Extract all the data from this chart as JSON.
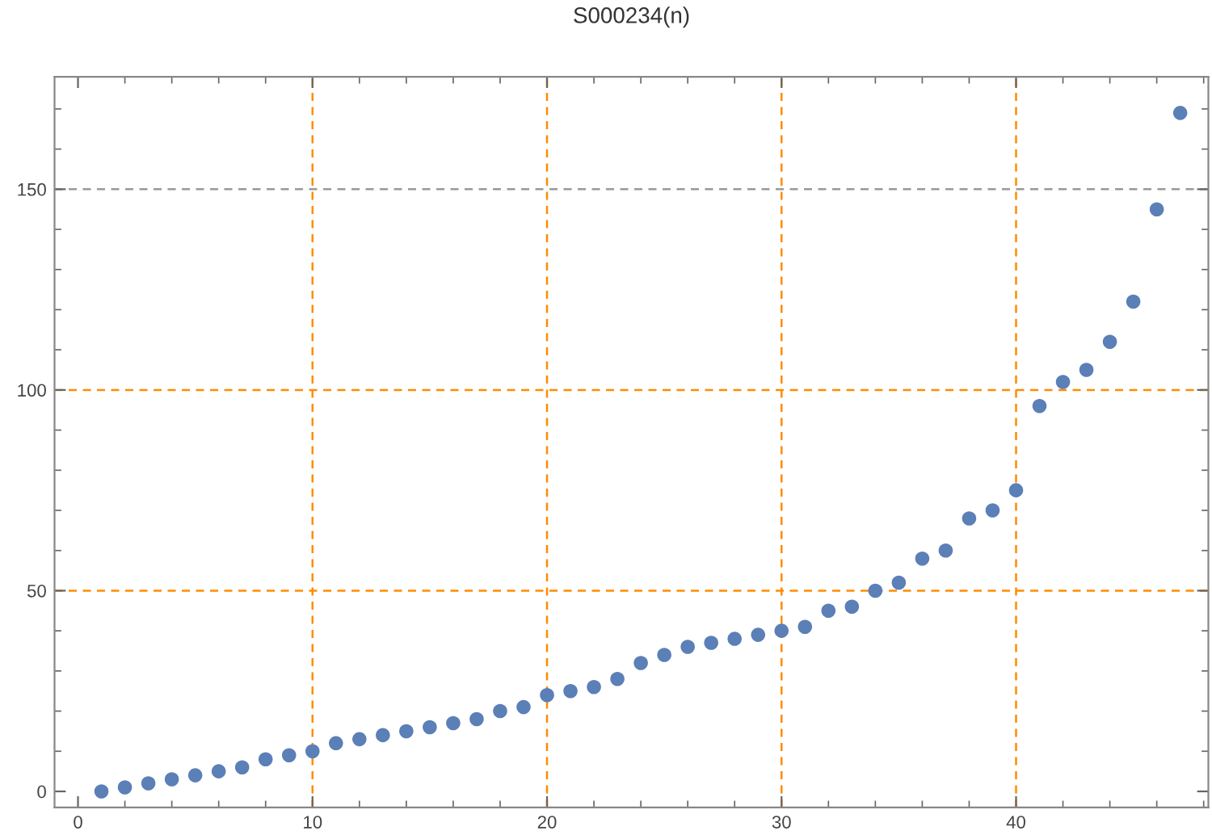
{
  "chart_data": {
    "type": "scatter",
    "title": "S000234(n)",
    "x": [
      1,
      2,
      3,
      4,
      5,
      6,
      7,
      8,
      9,
      10,
      11,
      12,
      13,
      14,
      15,
      16,
      17,
      18,
      19,
      20,
      21,
      22,
      23,
      24,
      25,
      26,
      27,
      28,
      29,
      30,
      31,
      32,
      33,
      34,
      35,
      36,
      37,
      38,
      39,
      40,
      41,
      42,
      43,
      44,
      45,
      46,
      47
    ],
    "series": [
      {
        "color": "#5b7fb7",
        "values": [
          0,
          1,
          2,
          3,
          4,
          5,
          6,
          8,
          9,
          10,
          12,
          13,
          14,
          15,
          16,
          17,
          18,
          20,
          21,
          24,
          25,
          26,
          28,
          32,
          34,
          36,
          37,
          38,
          39,
          40,
          41,
          45,
          46,
          50,
          52,
          58,
          60,
          68,
          70,
          75,
          96,
          102,
          105,
          112,
          122,
          145,
          169
        ]
      }
    ],
    "marker": "circle",
    "xlim": [
      -1,
      48.2
    ],
    "ylim": [
      -4,
      178
    ],
    "xticks": [
      0,
      10,
      20,
      30,
      40
    ],
    "yticks": [
      0,
      50,
      100,
      150
    ],
    "grid": false,
    "ref_lines": [
      {
        "axis": "x",
        "value": 10,
        "color": "#ff8c00",
        "line_style": "dashed"
      },
      {
        "axis": "x",
        "value": 20,
        "color": "#ff8c00",
        "line_style": "dashed"
      },
      {
        "axis": "x",
        "value": 30,
        "color": "#ff8c00",
        "line_style": "dashed"
      },
      {
        "axis": "x",
        "value": 40,
        "color": "#ff8c00",
        "line_style": "dashed"
      },
      {
        "axis": "y",
        "value": 50,
        "color": "#ff8c00",
        "line_style": "dashed"
      },
      {
        "axis": "y",
        "value": 100,
        "color": "#ff8c00",
        "line_style": "dashed"
      },
      {
        "axis": "y",
        "value": 150,
        "color": "#999999",
        "line_style": "dashed"
      }
    ]
  }
}
